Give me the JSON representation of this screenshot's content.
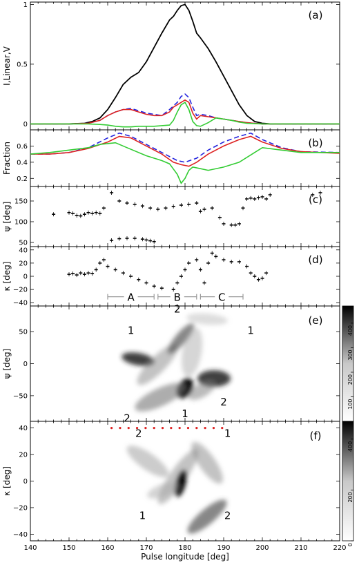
{
  "chart_data": [
    {
      "panel": "(a)",
      "type": "line",
      "ylabel": "I,Linear,V",
      "xlim": [
        140,
        220
      ],
      "ylim": [
        -0.05,
        1.02
      ],
      "yticks": [
        0,
        0.5,
        1
      ],
      "ytick_labels": [
        "0",
        "0.5",
        "1"
      ],
      "series": [
        {
          "color": "#000000",
          "dash": "",
          "x": [
            140,
            150,
            154,
            156,
            158,
            160,
            162,
            164,
            166,
            168,
            170,
            172,
            174,
            176,
            177,
            178,
            179,
            180,
            181,
            182,
            183,
            184,
            186,
            188,
            190,
            192,
            194,
            196,
            198,
            200,
            202,
            205,
            210,
            220
          ],
          "y": [
            0,
            0,
            0.005,
            0.02,
            0.05,
            0.12,
            0.22,
            0.33,
            0.39,
            0.43,
            0.52,
            0.64,
            0.76,
            0.87,
            0.9,
            0.95,
            0.99,
            1.0,
            0.95,
            0.86,
            0.76,
            0.72,
            0.63,
            0.52,
            0.4,
            0.28,
            0.16,
            0.07,
            0.02,
            0.005,
            0,
            0,
            0,
            0
          ]
        },
        {
          "color": "#2222dd",
          "dash": "7,4",
          "x": [
            140,
            150,
            155,
            158,
            160,
            162,
            164,
            166,
            168,
            170,
            172,
            174,
            176,
            178,
            179,
            180,
            181,
            182,
            183,
            184,
            186,
            188,
            190,
            192,
            194,
            196,
            198,
            200,
            210,
            220
          ],
          "y": [
            0,
            0,
            0.005,
            0.03,
            0.07,
            0.1,
            0.12,
            0.13,
            0.11,
            0.09,
            0.08,
            0.07,
            0.12,
            0.18,
            0.23,
            0.25,
            0.22,
            0.14,
            0.07,
            0.08,
            0.07,
            0.05,
            0.04,
            0.03,
            0.02,
            0.01,
            0.005,
            0,
            0,
            0
          ]
        },
        {
          "color": "#dd2222",
          "dash": "",
          "x": [
            140,
            150,
            155,
            158,
            160,
            162,
            164,
            166,
            168,
            170,
            172,
            174,
            176,
            177,
            178,
            179,
            180,
            181,
            182,
            183,
            184,
            186,
            188,
            190,
            192,
            194,
            196,
            198,
            200,
            210,
            220
          ],
          "y": [
            0,
            0,
            0.005,
            0.03,
            0.07,
            0.1,
            0.12,
            0.12,
            0.1,
            0.08,
            0.07,
            0.07,
            0.1,
            0.14,
            0.16,
            0.18,
            0.2,
            0.18,
            0.09,
            0.04,
            0.07,
            0.06,
            0.05,
            0.04,
            0.03,
            0.02,
            0.01,
            0.005,
            0,
            0,
            0
          ]
        },
        {
          "color": "#33cc33",
          "dash": "",
          "x": [
            140,
            150,
            155,
            158,
            160,
            162,
            164,
            166,
            168,
            170,
            172,
            174,
            176,
            177,
            178,
            179,
            180,
            181,
            182,
            183,
            184,
            186,
            188,
            190,
            192,
            194,
            196,
            200,
            210,
            220
          ],
          "y": [
            0,
            0,
            0,
            -0.005,
            -0.01,
            -0.02,
            -0.025,
            -0.025,
            -0.02,
            -0.02,
            -0.02,
            -0.015,
            -0.01,
            0.03,
            0.1,
            0.16,
            0.18,
            0.12,
            0.02,
            -0.015,
            -0.02,
            0.01,
            0.05,
            0.04,
            0.03,
            0.015,
            0.005,
            0,
            0,
            0
          ]
        }
      ]
    },
    {
      "panel": "(b)",
      "type": "line",
      "ylabel": "Fraction",
      "xlim": [
        140,
        220
      ],
      "ylim": [
        0.1,
        0.8
      ],
      "yticks": [
        0.2,
        0.4,
        0.6
      ],
      "ytick_labels": [
        "0.2",
        "0.4",
        "0.6"
      ],
      "series": [
        {
          "color": "#2222dd",
          "dash": "7,4",
          "x": [
            140,
            145,
            150,
            155,
            160,
            163,
            166,
            170,
            174,
            178,
            180,
            183,
            186,
            190,
            194,
            197,
            200,
            205,
            210,
            220
          ],
          "y": [
            0.5,
            0.5,
            0.52,
            0.58,
            0.7,
            0.76,
            0.72,
            0.62,
            0.52,
            0.42,
            0.4,
            0.45,
            0.55,
            0.65,
            0.72,
            0.76,
            0.68,
            0.58,
            0.53,
            0.52
          ]
        },
        {
          "color": "#dd2222",
          "dash": "",
          "x": [
            140,
            145,
            150,
            155,
            160,
            163,
            166,
            170,
            174,
            177,
            179,
            181,
            183,
            186,
            190,
            194,
            197,
            200,
            205,
            210,
            215,
            220
          ],
          "y": [
            0.5,
            0.5,
            0.52,
            0.57,
            0.65,
            0.72,
            0.7,
            0.6,
            0.5,
            0.4,
            0.37,
            0.35,
            0.4,
            0.5,
            0.6,
            0.68,
            0.72,
            0.65,
            0.57,
            0.53,
            0.52,
            0.51
          ]
        },
        {
          "color": "#33cc33",
          "dash": "",
          "x": [
            140,
            145,
            150,
            155,
            158,
            162,
            165,
            170,
            174,
            176,
            178,
            179,
            180,
            181,
            182,
            184,
            186,
            190,
            194,
            198,
            200,
            205,
            210,
            220
          ],
          "y": [
            0.5,
            0.52,
            0.55,
            0.58,
            0.62,
            0.64,
            0.58,
            0.48,
            0.42,
            0.38,
            0.25,
            0.14,
            0.2,
            0.3,
            0.34,
            0.32,
            0.3,
            0.34,
            0.4,
            0.52,
            0.58,
            0.55,
            0.52,
            0.52
          ]
        }
      ]
    },
    {
      "panel": "(c)",
      "type": "scatter",
      "ylabel": "ψ [deg]",
      "xlim": [
        140,
        220
      ],
      "ylim": [
        40,
        185
      ],
      "yticks": [
        50,
        100,
        150
      ],
      "ytick_labels": [
        "50",
        "100",
        "150"
      ],
      "points_x": [
        146,
        150,
        151,
        152,
        153,
        154,
        155,
        156,
        157,
        158,
        159,
        161,
        163,
        165,
        167,
        169,
        171,
        173,
        175,
        177,
        179,
        181,
        183,
        184,
        185,
        187,
        189,
        190,
        192,
        193,
        194,
        195,
        196,
        197,
        198,
        199,
        200,
        201,
        202,
        213,
        215,
        161,
        163,
        165,
        167,
        169,
        170,
        171,
        172
      ],
      "points_y": [
        118,
        122,
        120,
        115,
        114,
        118,
        122,
        120,
        122,
        120,
        133,
        170,
        150,
        145,
        142,
        138,
        133,
        130,
        133,
        137,
        140,
        142,
        145,
        125,
        130,
        133,
        110,
        95,
        92,
        92,
        95,
        133,
        155,
        157,
        155,
        158,
        160,
        155,
        165,
        165,
        170,
        55,
        59,
        60,
        60,
        58,
        56,
        54,
        52
      ]
    },
    {
      "panel": "(d)",
      "type": "scatter",
      "ylabel": "κ [deg]",
      "xlim": [
        140,
        220
      ],
      "ylim": [
        -45,
        45
      ],
      "yticks": [
        -40,
        -20,
        0,
        20,
        40
      ],
      "ytick_labels": [
        "−40",
        "−20",
        "0",
        "20",
        "40"
      ],
      "points_x": [
        150,
        151,
        152,
        153,
        154,
        155,
        156,
        157,
        158,
        159,
        160,
        162,
        164,
        166,
        168,
        170,
        172,
        174,
        177,
        178,
        179,
        180,
        181,
        183,
        184,
        185,
        186,
        187,
        188,
        190,
        192,
        194,
        196,
        197,
        198,
        199,
        200,
        201
      ],
      "points_y": [
        3,
        4,
        2,
        5,
        3,
        5,
        4,
        10,
        20,
        25,
        15,
        10,
        5,
        0,
        -5,
        -10,
        -15,
        -18,
        -20,
        -10,
        0,
        10,
        20,
        25,
        10,
        -10,
        20,
        35,
        30,
        25,
        22,
        22,
        15,
        5,
        0,
        -5,
        -3,
        5
      ],
      "region_labels": [
        "A",
        "B",
        "C"
      ],
      "regions": [
        [
          160,
          172
        ],
        [
          173,
          183
        ],
        [
          184,
          195
        ]
      ]
    },
    {
      "panel": "(e)",
      "type": "heatmap",
      "ylabel": "ψ [deg]",
      "xlim": [
        140,
        220
      ],
      "ylim": [
        -90,
        90
      ],
      "yticks": [
        -50,
        0,
        50
      ],
      "ytick_labels": [
        "−50",
        "0",
        "50"
      ],
      "colorbar_ticks": [
        100,
        200,
        300,
        400
      ],
      "colorbar_labels": [
        "100",
        "200",
        "300",
        "400"
      ],
      "colorbar_range": [
        0,
        470
      ],
      "annotations": [
        {
          "text": "1",
          "x": 166,
          "y": 52
        },
        {
          "text": "2",
          "x": 178,
          "y": 85
        },
        {
          "text": "1",
          "x": 197,
          "y": 52
        },
        {
          "text": "2",
          "x": 190,
          "y": -60
        },
        {
          "text": "1",
          "x": 180,
          "y": -78
        },
        {
          "text": "2",
          "x": 165,
          "y": -85
        }
      ]
    },
    {
      "panel": "(f)",
      "type": "heatmap",
      "ylabel": "κ [deg]",
      "xlabel": "Pulse longitude [deg]",
      "xlim": [
        140,
        220
      ],
      "ylim": [
        -45,
        45
      ],
      "yticks": [
        -40,
        -20,
        0,
        20,
        40
      ],
      "ytick_labels": [
        "−40",
        "−20",
        "0",
        "20",
        "40"
      ],
      "xticks": [
        140,
        150,
        160,
        170,
        180,
        190,
        200,
        210,
        220
      ],
      "xtick_labels": [
        "140",
        "150",
        "160",
        "170",
        "180",
        "190",
        "200",
        "210",
        "220"
      ],
      "colorbar_ticks": [
        0,
        200,
        400
      ],
      "colorbar_labels": [
        "0",
        "200",
        "400"
      ],
      "colorbar_range": [
        0,
        470
      ],
      "dotted_line": {
        "x_start": 161,
        "x_end": 191,
        "y": 40,
        "color": "#dd2222"
      },
      "annotations": [
        {
          "text": "2",
          "x": 168,
          "y": 36
        },
        {
          "text": "1",
          "x": 191,
          "y": 36
        },
        {
          "text": "1",
          "x": 169,
          "y": -26
        },
        {
          "text": "2",
          "x": 191,
          "y": -26
        }
      ]
    }
  ]
}
